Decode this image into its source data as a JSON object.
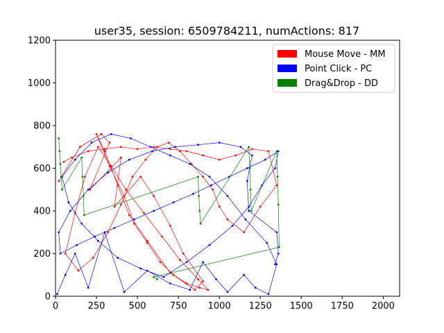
{
  "chart_data": {
    "type": "line",
    "title": "user35, session: 6509784211, numActions: 817",
    "xlabel": "",
    "ylabel": "",
    "xlim": [
      0,
      2100
    ],
    "ylim": [
      0,
      1200
    ],
    "x_ticks": [
      0,
      250,
      500,
      750,
      1000,
      1250,
      1500,
      1750,
      2000
    ],
    "y_ticks": [
      0,
      200,
      400,
      600,
      800,
      1000,
      1200
    ],
    "grid": false,
    "legend_position": "top-right",
    "series": [
      {
        "name": "Mouse Move - MM",
        "color": "#ff0000",
        "x": [
          20,
          150,
          280,
          330,
          210,
          400,
          360,
          520,
          600,
          700,
          780,
          900,
          850,
          700,
          560,
          450,
          380,
          300,
          250,
          330,
          420,
          480,
          560,
          640,
          720,
          800,
          880,
          930,
          870,
          760,
          650,
          540,
          430,
          340,
          260,
          180,
          120,
          60,
          140,
          230,
          320,
          400,
          470,
          550,
          620,
          690,
          760,
          830,
          900,
          960,
          1000,
          1050,
          1150,
          1250,
          1350,
          1300,
          1200,
          1100,
          1000,
          900,
          800,
          700,
          600,
          500,
          400,
          300,
          200,
          100,
          50
        ],
        "y": [
          540,
          700,
          760,
          720,
          500,
          650,
          420,
          560,
          470,
          330,
          200,
          70,
          30,
          110,
          260,
          380,
          520,
          680,
          760,
          610,
          470,
          340,
          250,
          160,
          100,
          60,
          40,
          30,
          80,
          170,
          280,
          390,
          500,
          610,
          700,
          560,
          390,
          200,
          120,
          180,
          300,
          430,
          560,
          640,
          700,
          720,
          680,
          620,
          560,
          500,
          420,
          360,
          300,
          420,
          520,
          680,
          690,
          660,
          640,
          660,
          680,
          690,
          700,
          690,
          700,
          690,
          680,
          650,
          630
        ]
      },
      {
        "name": "Point Click - PC",
        "color": "#0000ff",
        "x": [
          10,
          60,
          120,
          200,
          300,
          420,
          560,
          700,
          820,
          900,
          980,
          1050,
          1150,
          1220,
          1300,
          1350,
          1290,
          1160,
          1050,
          940,
          820,
          700,
          580,
          460,
          340,
          220,
          120,
          40,
          80,
          160,
          260,
          380,
          520,
          660,
          800,
          940,
          1080,
          1180,
          1260,
          1340,
          1360,
          1280,
          1170,
          1060,
          950,
          840,
          720,
          600,
          480,
          360,
          240,
          130,
          30,
          20,
          90,
          200,
          320,
          450,
          590,
          730,
          870,
          1000,
          1130,
          1200,
          1170,
          1180,
          1350,
          1360,
          1340
        ],
        "y": [
          10,
          100,
          200,
          40,
          300,
          20,
          120,
          60,
          30,
          160,
          80,
          20,
          100,
          40,
          10,
          150,
          250,
          360,
          470,
          560,
          620,
          660,
          700,
          740,
          760,
          720,
          640,
          560,
          440,
          340,
          260,
          180,
          130,
          90,
          160,
          240,
          330,
          420,
          520,
          600,
          680,
          640,
          600,
          560,
          520,
          480,
          440,
          400,
          360,
          320,
          280,
          240,
          200,
          300,
          400,
          500,
          580,
          640,
          680,
          700,
          710,
          720,
          700,
          660,
          540,
          400,
          300,
          200,
          150
        ]
      },
      {
        "name": "Drag&Drop - DD",
        "color": "#008000",
        "x": [
          20,
          25,
          30,
          35,
          40,
          160,
          165,
          170,
          175,
          870,
          875,
          880,
          885,
          1180,
          1185,
          1190,
          1195,
          1350,
          1355,
          1360,
          1365,
          600,
          620
        ],
        "y": [
          740,
          680,
          620,
          560,
          500,
          650,
          560,
          470,
          380,
          560,
          470,
          400,
          340,
          700,
          600,
          500,
          400,
          680,
          560,
          430,
          230,
          90,
          80
        ]
      }
    ]
  }
}
